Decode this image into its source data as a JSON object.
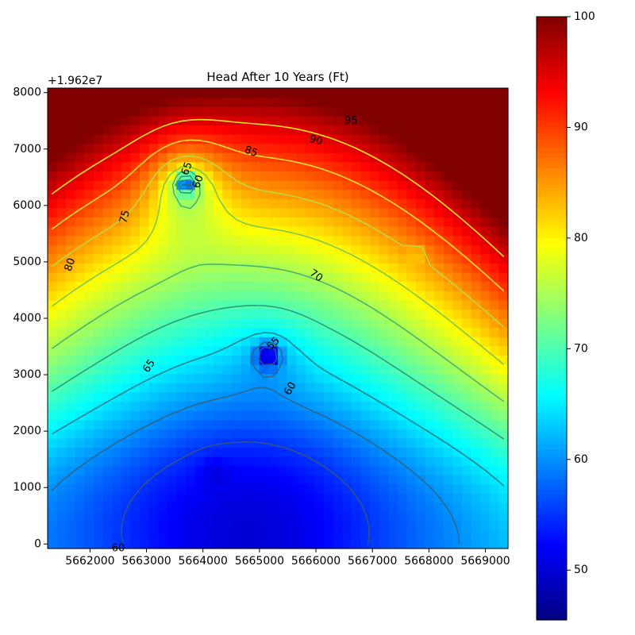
{
  "chart_data": {
    "type": "heatmap",
    "title": "Head After 10 Years (Ft)",
    "xlabel": "",
    "ylabel": "",
    "y_offset_label": "+1.962e7",
    "xlim": [
      5661250,
      5669400
    ],
    "ylim": [
      -80,
      8080
    ],
    "x_ticks": [
      5662000,
      5663000,
      5664000,
      5665000,
      5666000,
      5667000,
      5668000,
      5669000
    ],
    "y_ticks": [
      0,
      1000,
      2000,
      3000,
      4000,
      5000,
      6000,
      7000,
      8000
    ],
    "colorbar": {
      "colormap": "jet",
      "range": [
        45.5,
        100
      ],
      "ticks": [
        50,
        60,
        70,
        80,
        90,
        100
      ]
    },
    "grid": false,
    "contour_levels": [
      50,
      55,
      60,
      65,
      70,
      75,
      80,
      85,
      90,
      95
    ],
    "contour_labels": [
      {
        "text": "95",
        "x": 5666620,
        "y": 7500,
        "angle": 2
      },
      {
        "text": "90",
        "x": 5666000,
        "y": 7150,
        "angle": 15
      },
      {
        "text": "85",
        "x": 5664850,
        "y": 6950,
        "angle": 20
      },
      {
        "text": "80",
        "x": 5661650,
        "y": 4950,
        "angle": -70
      },
      {
        "text": "75",
        "x": 5662620,
        "y": 5800,
        "angle": -75
      },
      {
        "text": "70",
        "x": 5666000,
        "y": 4750,
        "angle": 35
      },
      {
        "text": "65",
        "x": 5663050,
        "y": 3150,
        "angle": -55
      },
      {
        "text": "60",
        "x": 5665550,
        "y": 2750,
        "angle": -60
      },
      {
        "text": "60",
        "x": 5662500,
        "y": -80,
        "angle": 0
      },
      {
        "text": "55",
        "x": 5665250,
        "y": 3550,
        "angle": -45
      },
      {
        "text": "65",
        "x": 5663720,
        "y": 6650,
        "angle": -70
      },
      {
        "text": "60",
        "x": 5663920,
        "y": 6420,
        "angle": -70
      }
    ]
  }
}
